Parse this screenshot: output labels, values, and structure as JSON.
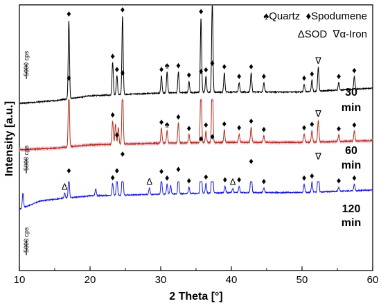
{
  "chart_data": {
    "type": "line",
    "title": "",
    "xlabel": "2 Theta [°]",
    "ylabel": "Intensity [a.u.]",
    "xlim": [
      10,
      60
    ],
    "xticks": [
      10,
      20,
      30,
      40,
      50,
      60
    ],
    "y_ticks_shown": false,
    "legend": {
      "placement": "top-right",
      "line1": [
        "♠Quartz",
        "♦Spodumene"
      ],
      "line2": [
        "ΔSOD",
        "∇α-Iron"
      ]
    },
    "scale_bar_label": "5000 cps",
    "series": [
      {
        "name": "30 min",
        "label_lines": [
          "30",
          "min"
        ],
        "color": "#000000",
        "offset": 0,
        "baseline": [
          [
            10,
            98
          ],
          [
            15,
            95
          ],
          [
            20,
            90
          ],
          [
            30,
            87
          ],
          [
            40,
            86
          ],
          [
            50,
            86
          ],
          [
            60,
            82
          ]
        ],
        "peaks": [
          [
            17.0,
            82
          ],
          [
            23.2,
            34
          ],
          [
            23.8,
            20
          ],
          [
            24.6,
            82
          ],
          [
            30.1,
            18
          ],
          [
            30.9,
            22
          ],
          [
            32.5,
            22
          ],
          [
            34.0,
            12
          ],
          [
            35.7,
            78
          ],
          [
            36.4,
            17
          ],
          [
            37.3,
            94
          ],
          [
            39.0,
            20
          ],
          [
            41.1,
            10
          ],
          [
            42.8,
            20
          ],
          [
            44.6,
            10
          ],
          [
            50.3,
            8
          ],
          [
            51.4,
            12
          ],
          [
            52.3,
            25
          ],
          [
            55.2,
            8
          ],
          [
            57.4,
            13
          ]
        ]
      },
      {
        "name": "60 min",
        "label_lines": [
          "60",
          "min"
        ],
        "color": "#b03020",
        "fill": "#f8c8d8",
        "offset": 0,
        "baseline": [
          [
            10,
            55
          ],
          [
            15,
            53
          ],
          [
            20,
            49
          ],
          [
            30,
            47
          ],
          [
            40,
            46
          ],
          [
            50,
            46
          ],
          [
            60,
            44
          ]
        ],
        "peaks": [
          [
            17.0,
            75
          ],
          [
            23.2,
            28
          ],
          [
            23.6,
            24
          ],
          [
            24.0,
            20
          ],
          [
            24.6,
            78
          ],
          [
            30.1,
            18
          ],
          [
            30.9,
            15
          ],
          [
            32.5,
            24
          ],
          [
            34.0,
            10
          ],
          [
            35.7,
            78
          ],
          [
            36.4,
            14
          ],
          [
            37.3,
            88
          ],
          [
            39.0,
            15
          ],
          [
            41.1,
            10
          ],
          [
            42.8,
            18
          ],
          [
            44.6,
            8
          ],
          [
            50.3,
            10
          ],
          [
            51.4,
            14
          ],
          [
            52.3,
            26
          ],
          [
            55.2,
            8
          ],
          [
            57.4,
            12
          ]
        ]
      },
      {
        "name": "120 min",
        "label_lines": [
          "120",
          "min"
        ],
        "color": "#1c1cdc",
        "offset": 0,
        "baseline": [
          [
            10,
            28
          ],
          [
            13,
            18
          ],
          [
            16,
            15
          ],
          [
            20,
            12
          ],
          [
            30,
            10
          ],
          [
            40,
            8
          ],
          [
            50,
            8
          ],
          [
            60,
            5
          ]
        ],
        "peaks": [
          [
            10.5,
            18
          ],
          [
            16.4,
            6
          ],
          [
            17.0,
            25
          ],
          [
            20.8,
            8
          ],
          [
            23.2,
            14
          ],
          [
            23.8,
            22
          ],
          [
            24.6,
            42
          ],
          [
            28.4,
            8
          ],
          [
            30.1,
            20
          ],
          [
            30.9,
            12
          ],
          [
            31.4,
            10
          ],
          [
            32.5,
            22
          ],
          [
            34.0,
            8
          ],
          [
            35.7,
            58
          ],
          [
            36.4,
            12
          ],
          [
            37.3,
            60
          ],
          [
            39.1,
            8
          ],
          [
            40.2,
            5
          ],
          [
            41.1,
            8
          ],
          [
            42.8,
            30
          ],
          [
            44.6,
            6
          ],
          [
            50.3,
            10
          ],
          [
            51.4,
            12
          ],
          [
            52.3,
            35
          ],
          [
            55.2,
            5
          ],
          [
            57.4,
            8
          ]
        ]
      }
    ],
    "markers": [
      {
        "type": "diamond",
        "x": 17.0,
        "series": "30 min"
      },
      {
        "type": "diamond",
        "x": 23.2,
        "series": "30 min"
      },
      {
        "type": "diamond",
        "x": 23.8,
        "series": "30 min"
      },
      {
        "type": "diamond",
        "x": 24.6,
        "series": "30 min"
      },
      {
        "type": "diamond",
        "x": 30.1,
        "series": "30 min"
      },
      {
        "type": "spade",
        "x": 30.9,
        "series": "30 min"
      },
      {
        "type": "diamond",
        "x": 32.5,
        "series": "30 min"
      },
      {
        "type": "diamond",
        "x": 34.0,
        "series": "30 min"
      },
      {
        "type": "diamond",
        "x": 35.7,
        "series": "30 min"
      },
      {
        "type": "diamond",
        "x": 36.4,
        "series": "30 min"
      },
      {
        "type": "diamond",
        "x": 37.3,
        "series": "30 min"
      },
      {
        "type": "diamond",
        "x": 39.0,
        "series": "30 min"
      },
      {
        "type": "diamond",
        "x": 41.1,
        "series": "30 min"
      },
      {
        "type": "diamond",
        "x": 42.8,
        "series": "30 min"
      },
      {
        "type": "diamond",
        "x": 44.6,
        "series": "30 min"
      },
      {
        "type": "diamond",
        "x": 50.3,
        "series": "30 min"
      },
      {
        "type": "diamond",
        "x": 51.4,
        "series": "30 min"
      },
      {
        "type": "triangle-down",
        "x": 52.3,
        "series": "30 min"
      },
      {
        "type": "diamond",
        "x": 55.2,
        "series": "30 min"
      },
      {
        "type": "diamond",
        "x": 57.4,
        "series": "30 min"
      },
      {
        "type": "diamond",
        "x": 17.0,
        "series": "60 min"
      },
      {
        "type": "diamond",
        "x": 23.2,
        "series": "60 min"
      },
      {
        "type": "diamond",
        "x": 23.8,
        "series": "60 min"
      },
      {
        "type": "diamond",
        "x": 24.6,
        "series": "60 min"
      },
      {
        "type": "diamond",
        "x": 30.1,
        "series": "60 min"
      },
      {
        "type": "spade",
        "x": 30.9,
        "series": "60 min"
      },
      {
        "type": "diamond",
        "x": 32.5,
        "series": "60 min"
      },
      {
        "type": "diamond",
        "x": 34.0,
        "series": "60 min"
      },
      {
        "type": "diamond",
        "x": 35.7,
        "series": "60 min"
      },
      {
        "type": "diamond",
        "x": 36.4,
        "series": "60 min"
      },
      {
        "type": "diamond",
        "x": 37.3,
        "series": "60 min"
      },
      {
        "type": "diamond",
        "x": 39.0,
        "series": "60 min"
      },
      {
        "type": "diamond",
        "x": 41.1,
        "series": "60 min"
      },
      {
        "type": "diamond",
        "x": 42.8,
        "series": "60 min"
      },
      {
        "type": "diamond",
        "x": 44.6,
        "series": "60 min"
      },
      {
        "type": "diamond",
        "x": 50.3,
        "series": "60 min"
      },
      {
        "type": "diamond",
        "x": 51.4,
        "series": "60 min"
      },
      {
        "type": "triangle-down",
        "x": 52.3,
        "series": "60 min"
      },
      {
        "type": "diamond",
        "x": 55.2,
        "series": "60 min"
      },
      {
        "type": "diamond",
        "x": 57.4,
        "series": "60 min"
      },
      {
        "type": "triangle-up",
        "x": 16.4,
        "series": "120 min"
      },
      {
        "type": "diamond",
        "x": 17.0,
        "series": "120 min"
      },
      {
        "type": "diamond",
        "x": 23.2,
        "series": "120 min"
      },
      {
        "type": "diamond",
        "x": 23.8,
        "series": "120 min"
      },
      {
        "type": "diamond",
        "x": 24.6,
        "series": "120 min"
      },
      {
        "type": "triangle-up",
        "x": 28.4,
        "series": "120 min"
      },
      {
        "type": "diamond",
        "x": 30.1,
        "series": "120 min"
      },
      {
        "type": "diamond",
        "x": 30.9,
        "series": "120 min"
      },
      {
        "type": "diamond",
        "x": 32.5,
        "series": "120 min"
      },
      {
        "type": "diamond",
        "x": 34.0,
        "series": "120 min"
      },
      {
        "type": "diamond",
        "x": 35.7,
        "series": "120 min"
      },
      {
        "type": "diamond",
        "x": 36.4,
        "series": "120 min"
      },
      {
        "type": "diamond",
        "x": 37.3,
        "series": "120 min"
      },
      {
        "type": "diamond",
        "x": 39.1,
        "series": "120 min"
      },
      {
        "type": "triangle-up",
        "x": 40.2,
        "series": "120 min"
      },
      {
        "type": "diamond",
        "x": 41.1,
        "series": "120 min"
      },
      {
        "type": "diamond",
        "x": 42.8,
        "series": "120 min"
      },
      {
        "type": "diamond",
        "x": 44.6,
        "series": "120 min"
      },
      {
        "type": "diamond",
        "x": 50.3,
        "series": "120 min"
      },
      {
        "type": "diamond",
        "x": 51.4,
        "series": "120 min"
      },
      {
        "type": "triangle-down",
        "x": 52.3,
        "series": "120 min"
      },
      {
        "type": "diamond",
        "x": 55.2,
        "series": "120 min"
      },
      {
        "type": "diamond",
        "x": 57.4,
        "series": "120 min"
      }
    ]
  }
}
